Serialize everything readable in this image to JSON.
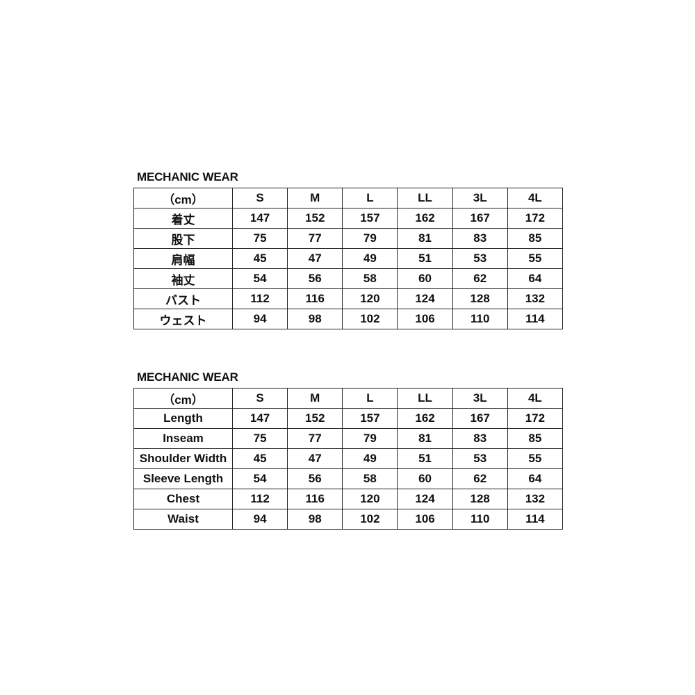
{
  "tables": [
    {
      "title": "MECHANIC WEAR",
      "header": [
        "（cm）",
        "S",
        "M",
        "L",
        "LL",
        "3L",
        "4L"
      ],
      "rows": [
        [
          "着丈",
          "147",
          "152",
          "157",
          "162",
          "167",
          "172"
        ],
        [
          "股下",
          "75",
          "77",
          "79",
          "81",
          "83",
          "85"
        ],
        [
          "肩幅",
          "45",
          "47",
          "49",
          "51",
          "53",
          "55"
        ],
        [
          "袖丈",
          "54",
          "56",
          "58",
          "60",
          "62",
          "64"
        ],
        [
          "バスト",
          "112",
          "116",
          "120",
          "124",
          "128",
          "132"
        ],
        [
          "ウェスト",
          "94",
          "98",
          "102",
          "106",
          "110",
          "114"
        ]
      ]
    },
    {
      "title": "MECHANIC WEAR",
      "header": [
        "（cm）",
        "S",
        "M",
        "L",
        "LL",
        "3L",
        "4L"
      ],
      "rows": [
        [
          "Length",
          "147",
          "152",
          "157",
          "162",
          "167",
          "172"
        ],
        [
          "Inseam",
          "75",
          "77",
          "79",
          "81",
          "83",
          "85"
        ],
        [
          "Shoulder Width",
          "45",
          "47",
          "49",
          "51",
          "53",
          "55"
        ],
        [
          "Sleeve Length",
          "54",
          "56",
          "58",
          "60",
          "62",
          "64"
        ],
        [
          "Chest",
          "112",
          "116",
          "120",
          "124",
          "128",
          "132"
        ],
        [
          "Waist",
          "94",
          "98",
          "102",
          "106",
          "110",
          "114"
        ]
      ]
    }
  ]
}
